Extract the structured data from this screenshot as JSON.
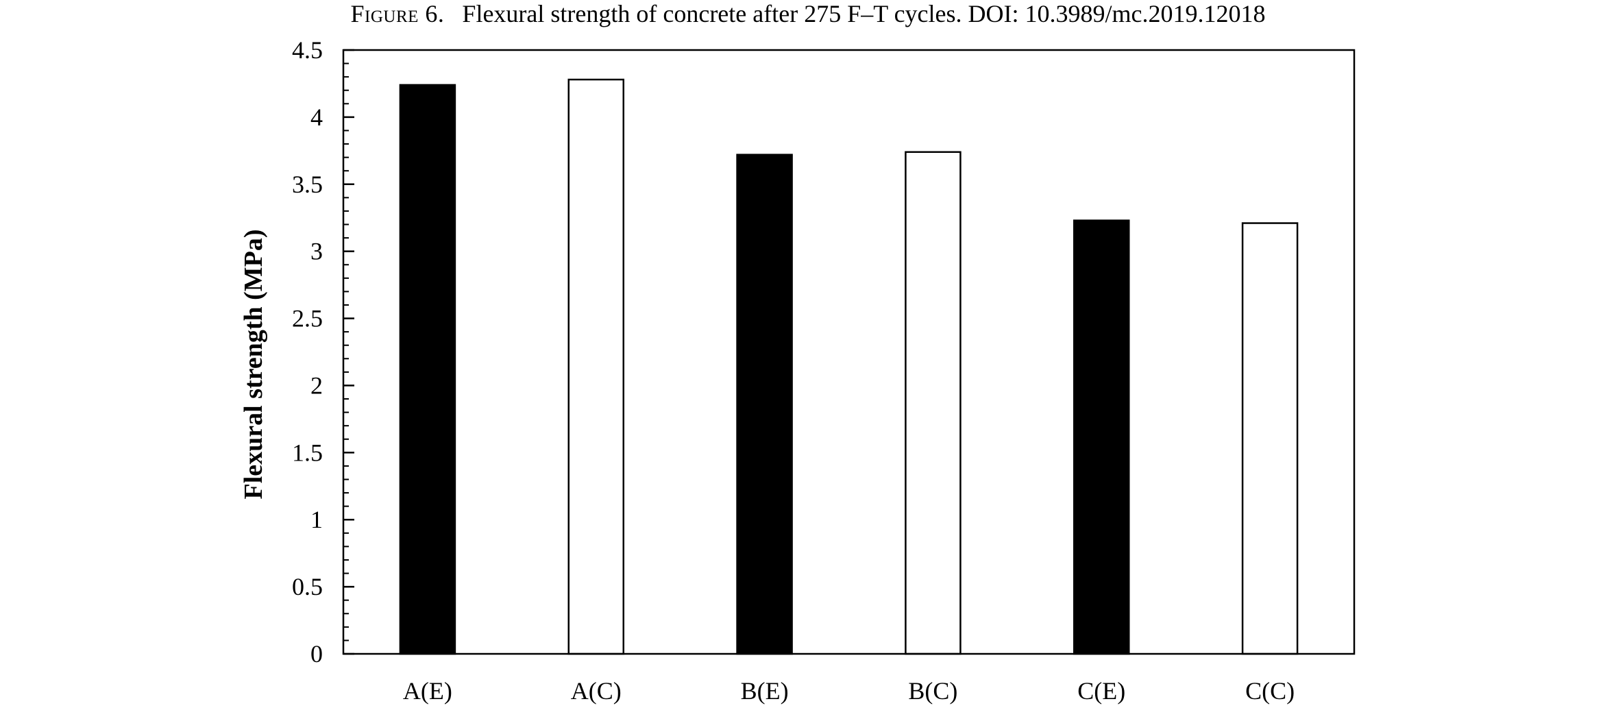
{
  "caption": {
    "figure_label": "Figure 6.",
    "text": "Flexural strength of concrete after 275 F–T cycles. DOI: 10.3989/mc.2019.12018"
  },
  "chart_data": {
    "type": "bar",
    "title": "",
    "xlabel": "",
    "ylabel": "Flexural strength (MPa)",
    "categories": [
      "A(E)",
      "A(C)",
      "B(E)",
      "B(C)",
      "C(E)",
      "C(C)"
    ],
    "values": [
      4.24,
      4.28,
      3.72,
      3.74,
      3.23,
      3.21
    ],
    "bar_fills": [
      "#000000",
      "#ffffff",
      "#000000",
      "#ffffff",
      "#000000",
      "#ffffff"
    ],
    "ylim": [
      0,
      4.5
    ],
    "y_ticks": [
      0,
      0.5,
      1,
      1.5,
      2,
      2.5,
      3,
      3.5,
      4,
      4.5
    ],
    "y_tick_labels": [
      "0",
      "0.5",
      "1",
      "1.5",
      "2",
      "2.5",
      "3",
      "3.5",
      "4",
      "4.5"
    ],
    "y_minor_step": 0.1,
    "grid": false,
    "legend": "none",
    "frame": "box",
    "colors": {
      "filled": "#000000",
      "hollow": "#ffffff",
      "stroke": "#000000"
    }
  }
}
